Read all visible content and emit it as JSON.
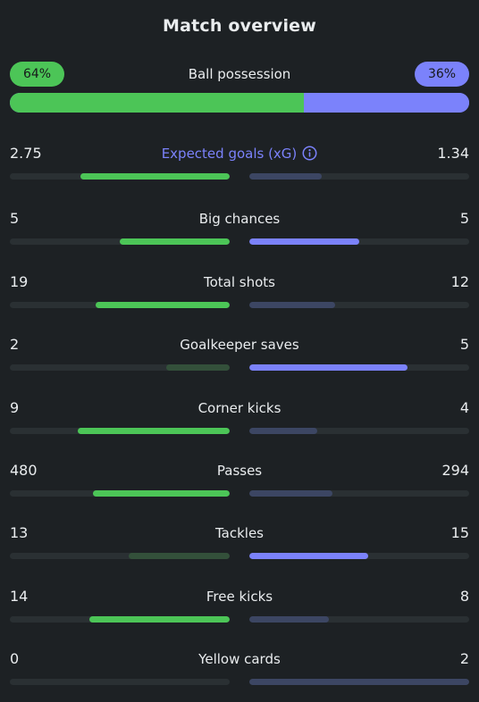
{
  "title": "Match overview",
  "colors": {
    "home_strong": "#4cc557",
    "home_weak": "#33503a",
    "away_strong": "#7b82fb",
    "away_weak": "#3c4663"
  },
  "possession": {
    "label": "Ball possession",
    "home": "64%",
    "away": "36%",
    "home_share": 0.64
  },
  "stats": [
    {
      "label": "Expected goals (xG)",
      "info_icon": "info-icon",
      "accent": true,
      "home": "2.75",
      "away": "1.34",
      "home_fill": 0.68,
      "away_fill": 0.33,
      "home_style": "strong",
      "away_style": "weak"
    },
    {
      "label": "Big chances",
      "home": "5",
      "away": "5",
      "home_fill": 0.5,
      "away_fill": 0.5,
      "home_style": "strong",
      "away_style": "strong"
    },
    {
      "label": "Total shots",
      "home": "19",
      "away": "12",
      "home_fill": 0.61,
      "away_fill": 0.39,
      "home_style": "strong",
      "away_style": "weak"
    },
    {
      "label": "Goalkeeper saves",
      "home": "2",
      "away": "5",
      "home_fill": 0.29,
      "away_fill": 0.72,
      "home_style": "weak",
      "away_style": "strong"
    },
    {
      "label": "Corner kicks",
      "home": "9",
      "away": "4",
      "home_fill": 0.69,
      "away_fill": 0.31,
      "home_style": "strong",
      "away_style": "weak"
    },
    {
      "label": "Passes",
      "home": "480",
      "away": "294",
      "home_fill": 0.62,
      "away_fill": 0.38,
      "home_style": "strong",
      "away_style": "weak"
    },
    {
      "label": "Tackles",
      "home": "13",
      "away": "15",
      "home_fill": 0.46,
      "away_fill": 0.54,
      "home_style": "weak",
      "away_style": "strong"
    },
    {
      "label": "Free kicks",
      "home": "14",
      "away": "8",
      "home_fill": 0.64,
      "away_fill": 0.36,
      "home_style": "strong",
      "away_style": "weak"
    },
    {
      "label": "Yellow cards",
      "home": "0",
      "away": "2",
      "home_fill": 0.0,
      "away_fill": 1.0,
      "home_style": "weak",
      "away_style": "weak"
    }
  ]
}
